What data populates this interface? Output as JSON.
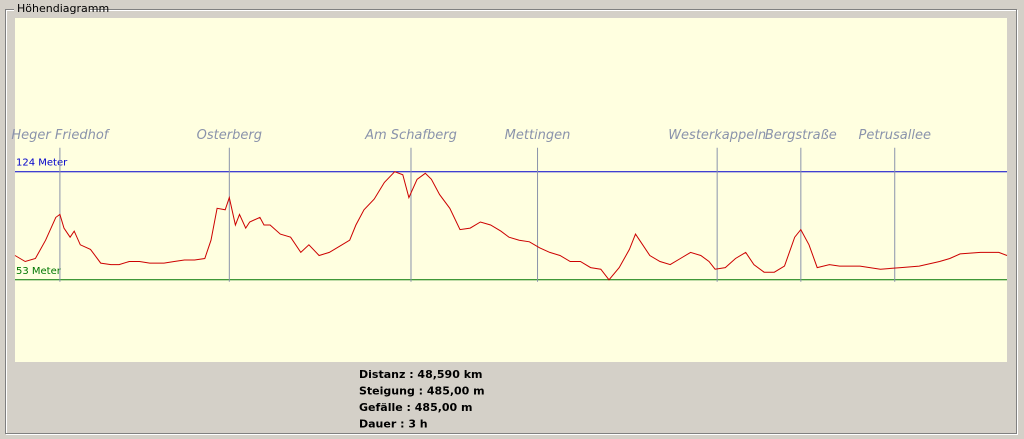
{
  "panel": {
    "title": "Höhendiagramm"
  },
  "chart_data": {
    "type": "line",
    "color": "#cc0000",
    "xlim": [
      0,
      48.6
    ],
    "ylim": [
      -1,
      225
    ],
    "x": [
      0.0,
      0.5,
      1.0,
      1.5,
      2.0,
      2.2,
      2.4,
      2.7,
      2.9,
      3.2,
      3.7,
      4.2,
      4.7,
      5.1,
      5.6,
      6.1,
      6.6,
      7.3,
      7.8,
      8.3,
      8.8,
      9.3,
      9.6,
      9.9,
      10.3,
      10.5,
      10.8,
      11.0,
      11.3,
      11.5,
      12.0,
      12.2,
      12.5,
      13.0,
      13.5,
      14.0,
      14.4,
      14.9,
      15.4,
      15.9,
      16.4,
      16.7,
      17.1,
      17.6,
      18.1,
      18.6,
      19.0,
      19.3,
      19.7,
      20.1,
      20.4,
      20.8,
      21.3,
      21.8,
      22.3,
      22.8,
      23.3,
      23.8,
      24.2,
      24.7,
      25.2,
      25.7,
      26.2,
      26.7,
      27.2,
      27.7,
      28.2,
      28.7,
      29.1,
      29.6,
      30.1,
      30.4,
      30.6,
      31.1,
      31.6,
      32.1,
      32.6,
      33.1,
      33.6,
      34.0,
      34.3,
      34.8,
      35.3,
      35.8,
      36.2,
      36.7,
      37.2,
      37.7,
      38.2,
      38.5,
      38.9,
      39.3,
      39.9,
      40.4,
      41.4,
      42.4,
      43.4,
      44.3,
      45.3,
      45.8,
      46.3,
      47.3,
      48.2,
      48.6
    ],
    "values": [
      69,
      65,
      67,
      79,
      94,
      96,
      87,
      81,
      85,
      76,
      73,
      64,
      63,
      63,
      65,
      65,
      64,
      64,
      65,
      66,
      66,
      67,
      79,
      100,
      99,
      107,
      89,
      96,
      87,
      91,
      94,
      89,
      89,
      83,
      81,
      71,
      76,
      69,
      71,
      75,
      79,
      89,
      99,
      106,
      117,
      124,
      122,
      107,
      119,
      123,
      119,
      109,
      100,
      86,
      87,
      91,
      89,
      85,
      81,
      79,
      78,
      74,
      71,
      69,
      65,
      65,
      61,
      60,
      53,
      61,
      73,
      83,
      79,
      69,
      65,
      63,
      67,
      71,
      69,
      65,
      60,
      61,
      67,
      71,
      63,
      58,
      58,
      62,
      81,
      86,
      76,
      61,
      63,
      62,
      62,
      60,
      61,
      62,
      65,
      67,
      70,
      71,
      71,
      69
    ],
    "reference_lines": [
      {
        "value": 124,
        "label": "124 Meter",
        "color": "#0000cc"
      },
      {
        "value": 53,
        "label": "53 Meter",
        "color": "#007700"
      }
    ],
    "waypoint_color": "#8a93ab",
    "waypoints": [
      {
        "label": "Heger Friedhof",
        "x": 2.2
      },
      {
        "label": "Osterberg",
        "x": 10.5
      },
      {
        "label": "Am Schafberg",
        "x": 19.4
      },
      {
        "label": "Mettingen",
        "x": 25.6
      },
      {
        "label": "Westerkappeln",
        "x": 34.4
      },
      {
        "label": "Bergstraße",
        "x": 38.5
      },
      {
        "label": "Petrusallee",
        "x": 43.1
      }
    ]
  },
  "stats": [
    "Distanz : 48,590 km",
    "Steigung : 485,00 m",
    "Gefälle : 485,00 m",
    "Dauer : 3 h"
  ]
}
